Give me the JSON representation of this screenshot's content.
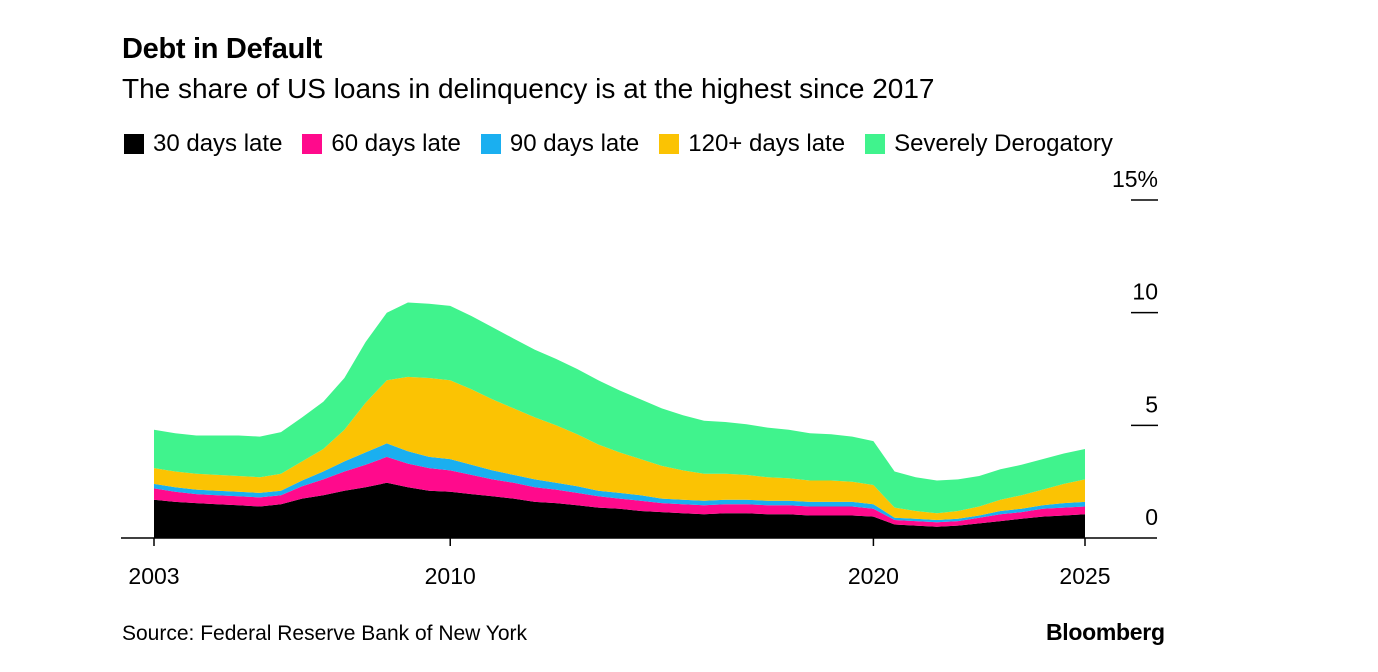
{
  "header": {
    "title": "Debt in Default",
    "subtitle": "The share of US loans in delinquency is at the highest since 2017"
  },
  "footer": {
    "source": "Source: Federal Reserve Bank of New York",
    "brand": "Bloomberg"
  },
  "chart_data": {
    "type": "area",
    "stacked": true,
    "title": "Debt in Default",
    "subtitle": "The share of US loans in delinquency is at the highest since 2017",
    "xlim": [
      2003.0,
      2025.9
    ],
    "ylim": [
      0,
      15
    ],
    "x_ticks": [
      {
        "value": 2003,
        "label": "2003"
      },
      {
        "value": 2010,
        "label": "2010"
      },
      {
        "value": 2020,
        "label": "2020"
      },
      {
        "value": 2025,
        "label": "2025"
      }
    ],
    "y_ticks": [
      {
        "value": 0,
        "label": "0"
      },
      {
        "value": 5,
        "label": "5"
      },
      {
        "value": 10,
        "label": "10"
      },
      {
        "value": 15,
        "label": "15%"
      }
    ],
    "legend_position": "top",
    "grid": false,
    "x": [
      2003.0,
      2003.5,
      2004.0,
      2004.5,
      2005.0,
      2005.5,
      2006.0,
      2006.5,
      2007.0,
      2007.5,
      2008.0,
      2008.5,
      2009.0,
      2009.5,
      2010.0,
      2010.5,
      2011.0,
      2011.5,
      2012.0,
      2012.5,
      2013.0,
      2013.5,
      2014.0,
      2014.5,
      2015.0,
      2015.5,
      2016.0,
      2016.5,
      2017.0,
      2017.5,
      2018.0,
      2018.5,
      2019.0,
      2019.5,
      2020.0,
      2020.5,
      2021.0,
      2021.5,
      2022.0,
      2022.5,
      2023.0,
      2023.5,
      2024.0,
      2024.5,
      2025.0
    ],
    "series": [
      {
        "name": "30 days late",
        "color": "#000000",
        "values": [
          1.7,
          1.6,
          1.55,
          1.5,
          1.45,
          1.4,
          1.5,
          1.75,
          1.9,
          2.1,
          2.25,
          2.45,
          2.25,
          2.1,
          2.05,
          1.95,
          1.85,
          1.75,
          1.6,
          1.55,
          1.45,
          1.35,
          1.3,
          1.2,
          1.15,
          1.1,
          1.05,
          1.1,
          1.1,
          1.05,
          1.05,
          1.0,
          1.0,
          1.0,
          0.95,
          0.6,
          0.55,
          0.5,
          0.55,
          0.65,
          0.75,
          0.85,
          0.95,
          1.0,
          1.05
        ]
      },
      {
        "name": "60 days late",
        "color": "#ff0a8c",
        "values": [
          0.5,
          0.45,
          0.4,
          0.4,
          0.4,
          0.4,
          0.4,
          0.55,
          0.7,
          0.85,
          1.0,
          1.15,
          1.05,
          1.0,
          0.95,
          0.85,
          0.75,
          0.7,
          0.65,
          0.6,
          0.55,
          0.5,
          0.45,
          0.45,
          0.4,
          0.4,
          0.4,
          0.4,
          0.4,
          0.4,
          0.4,
          0.4,
          0.4,
          0.4,
          0.35,
          0.2,
          0.2,
          0.2,
          0.2,
          0.25,
          0.3,
          0.3,
          0.35,
          0.35,
          0.35
        ]
      },
      {
        "name": "90 days late",
        "color": "#1aaff0",
        "values": [
          0.2,
          0.2,
          0.2,
          0.2,
          0.2,
          0.2,
          0.2,
          0.25,
          0.35,
          0.45,
          0.55,
          0.6,
          0.55,
          0.5,
          0.5,
          0.45,
          0.4,
          0.35,
          0.35,
          0.3,
          0.3,
          0.25,
          0.25,
          0.25,
          0.2,
          0.2,
          0.2,
          0.2,
          0.2,
          0.2,
          0.2,
          0.2,
          0.2,
          0.2,
          0.2,
          0.1,
          0.1,
          0.1,
          0.1,
          0.1,
          0.15,
          0.15,
          0.15,
          0.2,
          0.2
        ]
      },
      {
        "name": "120+ days late",
        "color": "#fbc303",
        "values": [
          0.7,
          0.7,
          0.7,
          0.7,
          0.7,
          0.7,
          0.75,
          0.85,
          1.0,
          1.4,
          2.2,
          2.8,
          3.3,
          3.5,
          3.5,
          3.35,
          3.15,
          2.95,
          2.75,
          2.55,
          2.3,
          2.05,
          1.8,
          1.6,
          1.45,
          1.3,
          1.2,
          1.15,
          1.1,
          1.05,
          1.0,
          0.95,
          0.95,
          0.9,
          0.85,
          0.45,
          0.35,
          0.3,
          0.35,
          0.4,
          0.5,
          0.6,
          0.7,
          0.85,
          1.0
        ]
      },
      {
        "name": "Severely Derogatory",
        "color": "#40f38d",
        "values": [
          1.7,
          1.7,
          1.7,
          1.75,
          1.8,
          1.8,
          1.85,
          1.95,
          2.1,
          2.3,
          2.7,
          3.0,
          3.3,
          3.3,
          3.3,
          3.25,
          3.2,
          3.1,
          3.0,
          2.95,
          2.9,
          2.85,
          2.75,
          2.65,
          2.55,
          2.45,
          2.35,
          2.3,
          2.25,
          2.2,
          2.15,
          2.1,
          2.05,
          2.0,
          1.95,
          1.6,
          1.5,
          1.45,
          1.4,
          1.35,
          1.35,
          1.35,
          1.35,
          1.35,
          1.35
        ]
      }
    ]
  }
}
